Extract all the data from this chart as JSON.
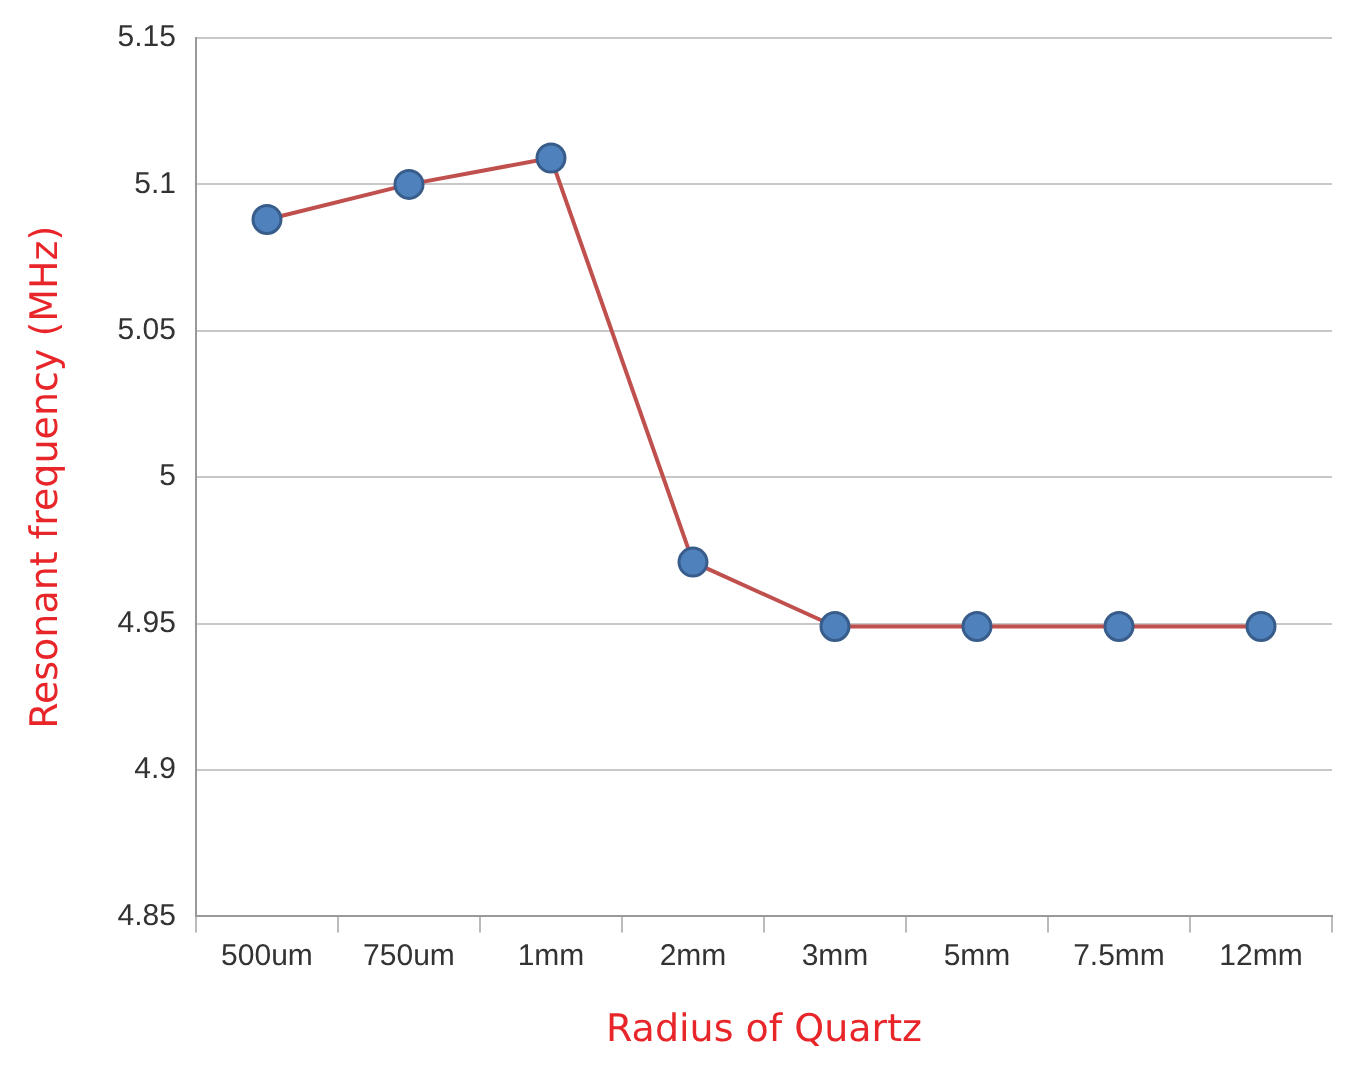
{
  "chart_data": {
    "type": "line",
    "xlabel": "Radius of Quartz",
    "ylabel": "Resonant frequency (MHz)",
    "categories": [
      "500um",
      "750um",
      "1mm",
      "2mm",
      "3mm",
      "5mm",
      "7.5mm",
      "12mm"
    ],
    "series": [
      {
        "color": "#c0504d",
        "colors": [
          "#4f81bd",
          "#4f81bd",
          "#4f81bd",
          "#4f81bd",
          "#4f81bd",
          "#4f81bd",
          "#4f81bd",
          "#4f81bd"
        ],
        "values": [
          5.088,
          5.1,
          5.109,
          4.971,
          4.949,
          4.949,
          4.949,
          4.949
        ]
      }
    ],
    "ylim": [
      4.85,
      5.15
    ],
    "yticks": [
      4.85,
      4.9,
      4.95,
      5,
      5.05,
      5.1,
      5.15
    ],
    "grid": "y",
    "legend": false,
    "marker": "circle",
    "line_style": "solid"
  }
}
